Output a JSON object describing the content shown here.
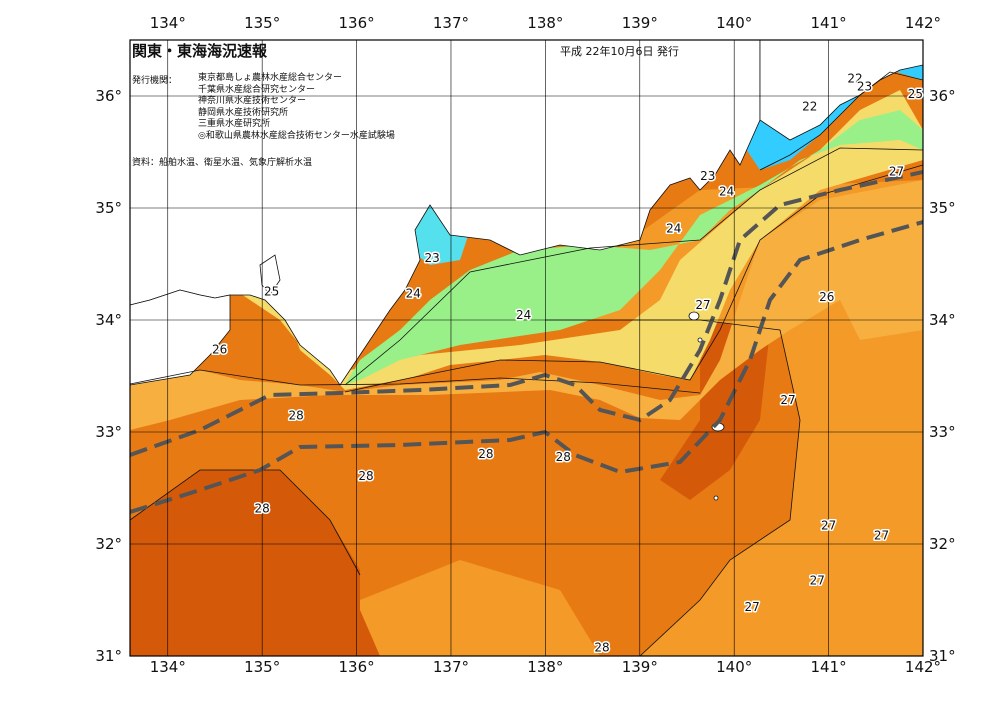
{
  "header": {
    "title": "関東・東海海況速報",
    "date": "平成 22年10月6日 発行",
    "institutions_label": "発行機関：",
    "institutions": [
      "東京都島しょ農林水産総合センター",
      "千葉県水産総合研究センター",
      "神奈川県水産技術センター",
      "静岡県水産技術研究所",
      "三重県水産研究所",
      "◎和歌山県農林水産総合技術センター水産試験場"
    ],
    "data_sources": "資料：船舶水温、衛星水温、気象庁解析水温"
  },
  "map": {
    "lon_ticks": [
      "134°",
      "135°",
      "136°",
      "137°",
      "138°",
      "139°",
      "140°",
      "141°",
      "142°"
    ],
    "lat_ticks": [
      "36°",
      "35°",
      "34°",
      "33°",
      "32°",
      "31°"
    ],
    "isotherm_labels": [
      {
        "text": "22",
        "lon": 140.8,
        "lat": 35.87
      },
      {
        "text": "22",
        "lon": 141.28,
        "lat": 36.12
      },
      {
        "text": "23",
        "lon": 141.38,
        "lat": 36.05
      },
      {
        "text": "25",
        "lon": 141.92,
        "lat": 35.98
      },
      {
        "text": "27",
        "lon": 141.72,
        "lat": 35.29
      },
      {
        "text": "23",
        "lon": 139.72,
        "lat": 35.25
      },
      {
        "text": "24",
        "lon": 139.92,
        "lat": 35.11
      },
      {
        "text": "24",
        "lon": 139.36,
        "lat": 34.78
      },
      {
        "text": "23",
        "lon": 136.8,
        "lat": 34.52
      },
      {
        "text": "24",
        "lon": 136.6,
        "lat": 34.2
      },
      {
        "text": "25",
        "lon": 135.1,
        "lat": 34.22
      },
      {
        "text": "24",
        "lon": 137.77,
        "lat": 34.01
      },
      {
        "text": "26",
        "lon": 134.55,
        "lat": 33.7
      },
      {
        "text": "27",
        "lon": 139.67,
        "lat": 34.1
      },
      {
        "text": "26",
        "lon": 140.98,
        "lat": 34.17
      },
      {
        "text": "27",
        "lon": 140.57,
        "lat": 33.25
      },
      {
        "text": "28",
        "lon": 135.36,
        "lat": 33.11
      },
      {
        "text": "28",
        "lon": 137.37,
        "lat": 32.77
      },
      {
        "text": "28",
        "lon": 138.19,
        "lat": 32.74
      },
      {
        "text": "28",
        "lon": 136.1,
        "lat": 32.57
      },
      {
        "text": "28",
        "lon": 135.0,
        "lat": 32.28
      },
      {
        "text": "27",
        "lon": 141.0,
        "lat": 32.13
      },
      {
        "text": "27",
        "lon": 141.56,
        "lat": 32.04
      },
      {
        "text": "27",
        "lon": 140.88,
        "lat": 31.64
      },
      {
        "text": "27",
        "lon": 140.19,
        "lat": 31.4
      },
      {
        "text": "28",
        "lon": 138.6,
        "lat": 31.04
      }
    ]
  },
  "colors": {
    "sst_22": "#33ccff",
    "sst_23": "#55e0ee",
    "sst_24": "#99f088",
    "sst_25": "#f5dc6a",
    "sst_26": "#f7b040",
    "sst_27": "#f39a28",
    "sst_28": "#e87a14",
    "sst_28_5": "#d45a0a",
    "land": "#ffffff",
    "kuroshio_axis": "#555555"
  }
}
